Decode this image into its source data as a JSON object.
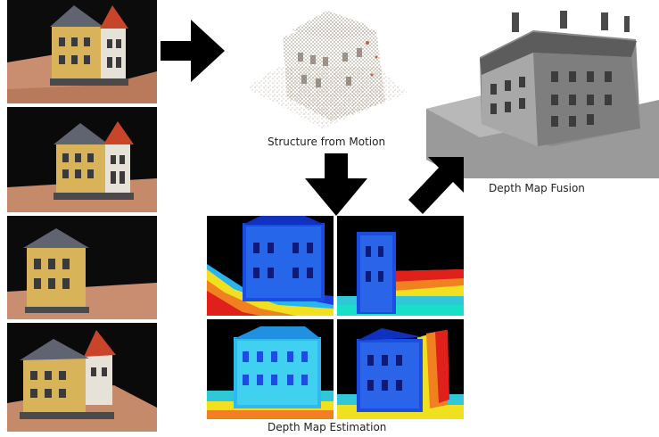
{
  "labels": {
    "sfm": "Structure from Motion",
    "fusion": "Depth Map Fusion",
    "estimation": "Depth Map Estimation"
  },
  "colors": {
    "arrow": "#000000",
    "facade_yellow": "#d9b35a",
    "roof_gray": "#5f6470",
    "roof_red": "#c9452a",
    "depth_near": "#e0201a",
    "depth_mid": "#f0e020",
    "depth_far": "#1a4de0"
  }
}
